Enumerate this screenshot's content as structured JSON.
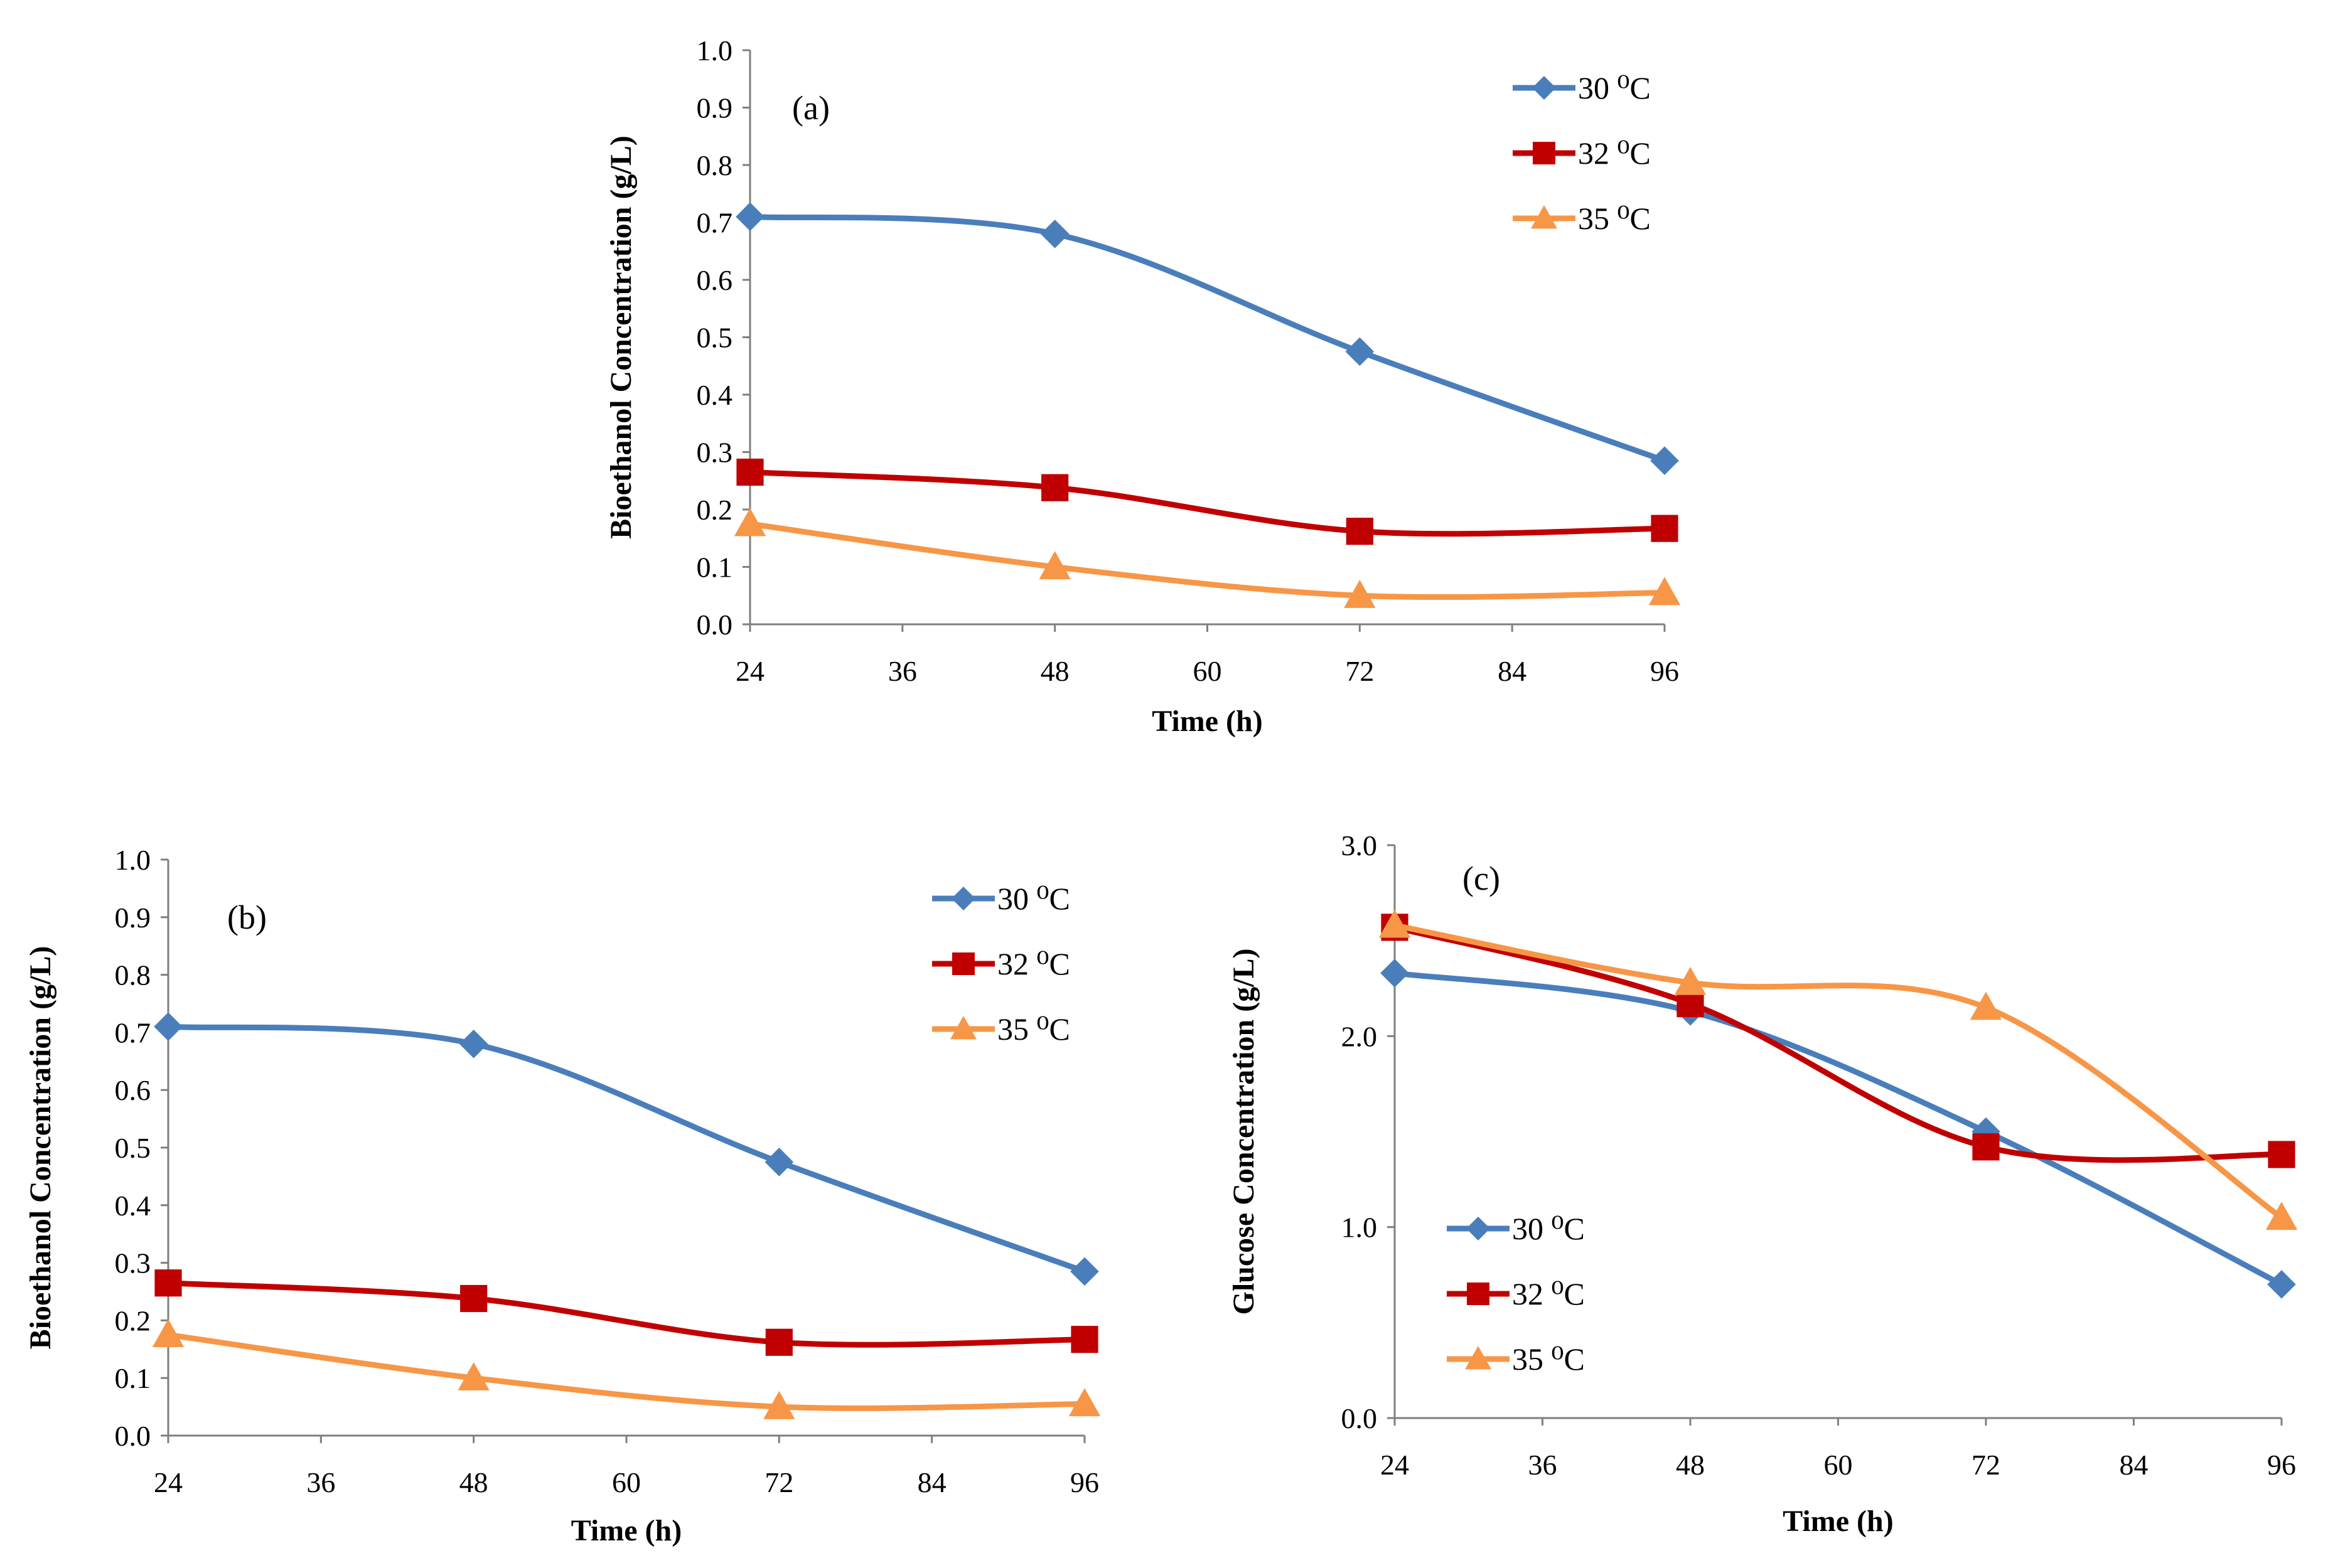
{
  "chart_data": [
    {
      "id": "a",
      "type": "line",
      "panel_label": "(a)",
      "xlabel": "Time (h)",
      "ylabel": "Bioethanol Concentration (g/L)",
      "xlim": [
        24,
        96
      ],
      "ylim": [
        0,
        1.0
      ],
      "x_ticks": [
        "24",
        "36",
        "48",
        "60",
        "72",
        "84",
        "96"
      ],
      "y_ticks": [
        "0.0",
        "0.1",
        "0.2",
        "0.3",
        "0.4",
        "0.5",
        "0.6",
        "0.7",
        "0.8",
        "0.9",
        "1.0"
      ],
      "legend_position": "top-right",
      "series": [
        {
          "name": "30",
          "unit": "⁰C",
          "color": "#4a7ebb",
          "marker": "diamond",
          "x": [
            24,
            48,
            72,
            96
          ],
          "values": [
            0.71,
            0.68,
            0.475,
            0.285
          ]
        },
        {
          "name": "32",
          "unit": "⁰C",
          "color": "#c00000",
          "marker": "square",
          "x": [
            24,
            48,
            72,
            96
          ],
          "values": [
            0.265,
            0.238,
            0.162,
            0.167
          ]
        },
        {
          "name": "35",
          "unit": "⁰C",
          "color": "#f79646",
          "marker": "triangle",
          "x": [
            24,
            48,
            72,
            96
          ],
          "values": [
            0.175,
            0.1,
            0.05,
            0.055
          ]
        }
      ]
    },
    {
      "id": "b",
      "type": "line",
      "panel_label": "(b)",
      "xlabel": "Time (h)",
      "ylabel": "Bioethanol Concentration (g/L)",
      "xlim": [
        24,
        96
      ],
      "ylim": [
        0,
        1.0
      ],
      "x_ticks": [
        "24",
        "36",
        "48",
        "60",
        "72",
        "84",
        "96"
      ],
      "y_ticks": [
        "0.0",
        "0.1",
        "0.2",
        "0.3",
        "0.4",
        "0.5",
        "0.6",
        "0.7",
        "0.8",
        "0.9",
        "1.0"
      ],
      "legend_position": "top-right",
      "series": [
        {
          "name": "30",
          "unit": "⁰C",
          "color": "#4a7ebb",
          "marker": "diamond",
          "x": [
            24,
            48,
            72,
            96
          ],
          "values": [
            0.71,
            0.68,
            0.475,
            0.285
          ]
        },
        {
          "name": "32",
          "unit": "⁰C",
          "color": "#c00000",
          "marker": "square",
          "x": [
            24,
            48,
            72,
            96
          ],
          "values": [
            0.265,
            0.238,
            0.162,
            0.167
          ]
        },
        {
          "name": "35",
          "unit": "⁰C",
          "color": "#f79646",
          "marker": "triangle",
          "x": [
            24,
            48,
            72,
            96
          ],
          "values": [
            0.175,
            0.1,
            0.05,
            0.055
          ]
        }
      ]
    },
    {
      "id": "c",
      "type": "line",
      "panel_label": "(c)",
      "xlabel": "Time (h)",
      "ylabel": "Glucose Concentration (g/L)",
      "xlim": [
        24,
        96
      ],
      "ylim": [
        0,
        3.0
      ],
      "x_ticks": [
        "24",
        "36",
        "48",
        "60",
        "72",
        "84",
        "96"
      ],
      "y_ticks": [
        "0.0",
        "1.0",
        "2.0",
        "3.0"
      ],
      "legend_position": "bottom-left",
      "series": [
        {
          "name": "30",
          "unit": "⁰C",
          "color": "#4a7ebb",
          "marker": "diamond",
          "x": [
            24,
            48,
            72,
            96
          ],
          "values": [
            2.33,
            2.13,
            1.5,
            0.7
          ]
        },
        {
          "name": "32",
          "unit": "⁰C",
          "color": "#c00000",
          "marker": "square",
          "x": [
            24,
            48,
            72,
            96
          ],
          "values": [
            2.57,
            2.17,
            1.42,
            1.38
          ]
        },
        {
          "name": "35",
          "unit": "⁰C",
          "color": "#f79646",
          "marker": "triangle",
          "x": [
            24,
            48,
            72,
            96
          ],
          "values": [
            2.58,
            2.28,
            2.15,
            1.05
          ]
        }
      ]
    }
  ]
}
